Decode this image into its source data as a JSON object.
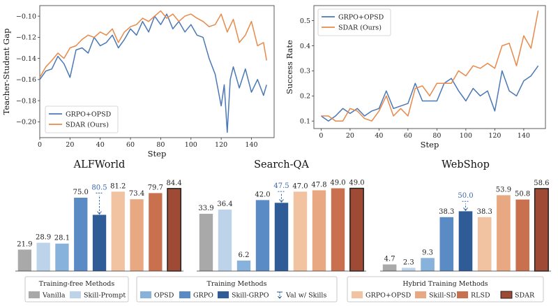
{
  "chart_data": [
    {
      "type": "line",
      "xlabel": "Step",
      "ylabel": "Teacher-Student Gap",
      "xlim": [
        0,
        155
      ],
      "ylim": [
        -0.215,
        -0.09
      ],
      "xticks": [
        0,
        20,
        40,
        60,
        80,
        100,
        120,
        140
      ],
      "yticks": [
        -0.2,
        -0.18,
        -0.16,
        -0.14,
        -0.12,
        -0.1
      ],
      "ytick_labels": [
        "−0.20",
        "−0.18",
        "−0.16",
        "−0.14",
        "−0.12",
        "−0.10"
      ],
      "legend": "bottom-left",
      "grid": false,
      "series": [
        {
          "name": "GRPO+OPSD",
          "color": "#4a78b5",
          "x": [
            0,
            4,
            8,
            12,
            16,
            20,
            24,
            28,
            32,
            36,
            40,
            44,
            48,
            52,
            56,
            60,
            64,
            68,
            72,
            76,
            80,
            84,
            88,
            92,
            96,
            100,
            104,
            108,
            112,
            116,
            120,
            122,
            124,
            126,
            128,
            132,
            136,
            140,
            144,
            148,
            150
          ],
          "y": [
            -0.16,
            -0.152,
            -0.15,
            -0.138,
            -0.145,
            -0.158,
            -0.132,
            -0.13,
            -0.135,
            -0.12,
            -0.128,
            -0.125,
            -0.118,
            -0.13,
            -0.122,
            -0.112,
            -0.118,
            -0.105,
            -0.115,
            -0.1,
            -0.108,
            -0.098,
            -0.112,
            -0.105,
            -0.115,
            -0.108,
            -0.118,
            -0.12,
            -0.14,
            -0.155,
            -0.185,
            -0.165,
            -0.21,
            -0.16,
            -0.148,
            -0.168,
            -0.15,
            -0.172,
            -0.16,
            -0.175,
            -0.165
          ]
        },
        {
          "name": "SDAR (Ours)",
          "color": "#e8894a",
          "x": [
            0,
            4,
            8,
            12,
            16,
            20,
            24,
            28,
            32,
            36,
            40,
            44,
            48,
            52,
            56,
            60,
            64,
            68,
            72,
            76,
            80,
            84,
            88,
            92,
            96,
            100,
            104,
            108,
            112,
            116,
            120,
            124,
            128,
            132,
            136,
            140,
            144,
            148,
            150
          ],
          "y": [
            -0.158,
            -0.148,
            -0.142,
            -0.135,
            -0.14,
            -0.13,
            -0.128,
            -0.122,
            -0.118,
            -0.12,
            -0.115,
            -0.118,
            -0.112,
            -0.125,
            -0.115,
            -0.11,
            -0.108,
            -0.102,
            -0.105,
            -0.1,
            -0.095,
            -0.102,
            -0.098,
            -0.105,
            -0.1,
            -0.098,
            -0.102,
            -0.105,
            -0.11,
            -0.108,
            -0.098,
            -0.115,
            -0.103,
            -0.125,
            -0.118,
            -0.105,
            -0.128,
            -0.125,
            -0.142
          ]
        }
      ]
    },
    {
      "type": "line",
      "xlabel": "Step",
      "ylabel": "Success Rate",
      "xlim": [
        -5,
        155
      ],
      "ylim": [
        0.07,
        0.56
      ],
      "xticks": [
        0,
        20,
        40,
        60,
        80,
        100,
        120,
        140
      ],
      "yticks": [
        0.1,
        0.2,
        0.3,
        0.4,
        0.5
      ],
      "ytick_labels": [
        "0.1",
        "0.2",
        "0.3",
        "0.4",
        "0.5"
      ],
      "legend": "top-left",
      "grid": false,
      "series": [
        {
          "name": "GRPO+OPSD",
          "color": "#4a78b5",
          "x": [
            0,
            5,
            10,
            15,
            20,
            25,
            30,
            35,
            40,
            45,
            50,
            55,
            60,
            65,
            70,
            75,
            80,
            85,
            90,
            95,
            100,
            105,
            110,
            115,
            120,
            125,
            130,
            135,
            140,
            145,
            150
          ],
          "y": [
            0.12,
            0.1,
            0.12,
            0.15,
            0.13,
            0.15,
            0.12,
            0.14,
            0.15,
            0.22,
            0.15,
            0.16,
            0.17,
            0.25,
            0.18,
            0.18,
            0.18,
            0.25,
            0.27,
            0.22,
            0.18,
            0.23,
            0.2,
            0.22,
            0.14,
            0.3,
            0.22,
            0.2,
            0.26,
            0.28,
            0.32
          ]
        },
        {
          "name": "SDAR (Ours)",
          "color": "#e8894a",
          "x": [
            0,
            5,
            10,
            15,
            20,
            25,
            30,
            35,
            40,
            45,
            50,
            55,
            60,
            65,
            70,
            75,
            80,
            85,
            90,
            95,
            100,
            105,
            110,
            115,
            120,
            125,
            130,
            135,
            140,
            145,
            150
          ],
          "y": [
            0.12,
            0.12,
            0.1,
            0.1,
            0.15,
            0.14,
            0.11,
            0.1,
            0.14,
            0.2,
            0.12,
            0.15,
            0.12,
            0.23,
            0.24,
            0.2,
            0.25,
            0.25,
            0.25,
            0.3,
            0.28,
            0.32,
            0.31,
            0.33,
            0.31,
            0.4,
            0.41,
            0.32,
            0.44,
            0.39,
            0.54
          ]
        }
      ]
    },
    {
      "type": "bar",
      "title": "ALFWorld",
      "ylim": [
        0,
        95
      ],
      "categories": [
        "Vanilla",
        "Skill-Prompt",
        "OPSD",
        "GRPO",
        "Skill-GRPO",
        "GRPO+OPSD",
        "Skill-SD",
        "RLSD",
        "SDAR"
      ],
      "values": [
        21.9,
        28.9,
        28.1,
        75.0,
        57.5,
        81.2,
        73.4,
        79.7,
        84.4
      ],
      "labels": [
        "21.9",
        "28.9",
        "28.1",
        "75.0",
        null,
        "81.2",
        "73.4",
        "79.7",
        "84.4"
      ],
      "val_with_skills": {
        "index": 4,
        "value": 80.5,
        "label": "80.5"
      }
    },
    {
      "type": "bar",
      "title": "Search-QA",
      "ylim": [
        0,
        55
      ],
      "categories": [
        "Vanilla",
        "Skill-Prompt",
        "OPSD",
        "GRPO",
        "Skill-GRPO",
        "GRPO+OPSD",
        "Skill-SD",
        "RLSD",
        "SDAR"
      ],
      "values": [
        33.9,
        36.4,
        6.2,
        42.0,
        40.4,
        47.0,
        47.8,
        49.0,
        49.0
      ],
      "labels": [
        "33.9",
        "36.4",
        "6.2",
        "42.0",
        null,
        "47.0",
        "47.8",
        "49.0",
        "49.0"
      ],
      "val_with_skills": {
        "index": 4,
        "value": 47.5,
        "label": "47.5"
      }
    },
    {
      "type": "bar",
      "title": "WebShop",
      "ylim": [
        0,
        66
      ],
      "categories": [
        "Vanilla",
        "Skill-Prompt",
        "OPSD",
        "GRPO",
        "Skill-GRPO",
        "GRPO+OPSD",
        "Skill-SD",
        "RLSD",
        "SDAR"
      ],
      "values": [
        4.7,
        2.3,
        9.3,
        38.3,
        42.5,
        38.3,
        53.9,
        50.8,
        58.6
      ],
      "labels": [
        "4.7",
        "2.3",
        "9.3",
        "38.3",
        null,
        "38.3",
        "53.9",
        "50.8",
        "58.6"
      ],
      "val_with_skills": {
        "index": 4,
        "value": 50.0,
        "label": "50.0"
      }
    }
  ],
  "legend_groups": [
    {
      "title": "Training-free Methods",
      "items": [
        {
          "label": "Vanilla",
          "color": "#a9a9a9"
        },
        {
          "label": "Skill-Prompt",
          "color": "#bcd3ea"
        }
      ]
    },
    {
      "title": "Training Methods",
      "items": [
        {
          "label": "OPSD",
          "color": "#87b2dc"
        },
        {
          "label": "GRPO",
          "color": "#5b8bc4"
        },
        {
          "label": "Skill-GRPO",
          "color": "#2f5b96"
        },
        {
          "label": "Val w/ Skills",
          "color": "#2f5b96",
          "marker": "dashed-arrow"
        }
      ]
    },
    {
      "title": "Hybrid Training Methods",
      "items": [
        {
          "label": "GRPO+OPSD",
          "color": "#f2c3a0"
        },
        {
          "label": "Skill-SD",
          "color": "#e8a882"
        },
        {
          "label": "RLSD",
          "color": "#c9704f"
        },
        {
          "label": "SDAR",
          "color": "#9e4a35"
        }
      ]
    }
  ],
  "bar_colors": [
    "#a9a9a9",
    "#bcd3ea",
    "#87b2dc",
    "#5b8bc4",
    "#2f5b96",
    "#f2c3a0",
    "#e8a882",
    "#c9704f",
    "#9e4a35"
  ],
  "accent_label_color": "#3a67a8"
}
